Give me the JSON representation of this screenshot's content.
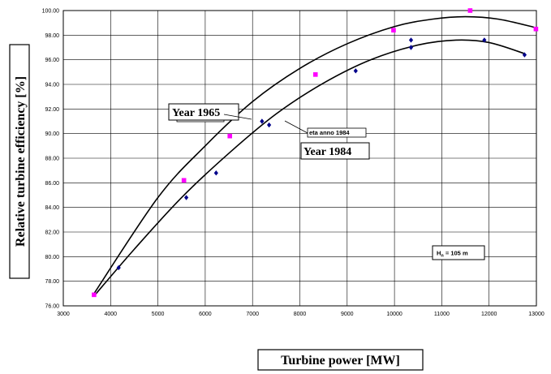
{
  "chart_data": {
    "type": "scatter",
    "xlabel": "Turbine power [MW]",
    "ylabel": "Relative turbine efficiency [%]",
    "xlim": [
      3000,
      13000
    ],
    "ylim": [
      76,
      100
    ],
    "x_ticks": [
      "3000",
      "4000",
      "5000",
      "6000",
      "7000",
      "8000",
      "9000",
      "10000",
      "11000",
      "12000",
      "13000"
    ],
    "y_ticks": [
      "76.00",
      "78.00",
      "80.00",
      "82.00",
      "84.00",
      "86.00",
      "88.00",
      "90.00",
      "92.00",
      "94.00",
      "96.00",
      "98.00",
      "100.00"
    ],
    "grid": true,
    "series": [
      {
        "name": "eta anno 1965",
        "label": "Year 1965",
        "color": "#ff00ff",
        "marker": "square",
        "points": [
          [
            3650,
            76.9
          ],
          [
            5550,
            86.2
          ],
          [
            6520,
            89.8
          ],
          [
            8330,
            94.8
          ],
          [
            9980,
            98.4
          ],
          [
            11600,
            100.0
          ],
          [
            12990,
            98.5
          ]
        ],
        "fit": [
          [
            3650,
            77.0
          ],
          [
            5000,
            84.8
          ],
          [
            6000,
            89.0
          ],
          [
            7000,
            92.6
          ],
          [
            8000,
            95.3
          ],
          [
            9000,
            97.3
          ],
          [
            10000,
            98.7
          ],
          [
            10800,
            99.3
          ],
          [
            11500,
            99.5
          ],
          [
            12200,
            99.3
          ],
          [
            13000,
            98.6
          ]
        ]
      },
      {
        "name": "eta anno 1984",
        "label": "Year 1984",
        "color": "#00008b",
        "marker": "diamond",
        "points": [
          [
            4170,
            79.1
          ],
          [
            5600,
            84.8
          ],
          [
            6230,
            86.8
          ],
          [
            7200,
            91.0
          ],
          [
            7350,
            90.7
          ],
          [
            9180,
            95.1
          ],
          [
            10350,
            97.0
          ],
          [
            10350,
            97.6
          ],
          [
            11900,
            97.6
          ],
          [
            12750,
            96.4
          ]
        ],
        "fit": [
          [
            3650,
            76.8
          ],
          [
            4500,
            80.6
          ],
          [
            5500,
            84.8
          ],
          [
            6500,
            88.4
          ],
          [
            7500,
            91.6
          ],
          [
            8500,
            94.1
          ],
          [
            9500,
            96.0
          ],
          [
            10500,
            97.2
          ],
          [
            11300,
            97.6
          ],
          [
            12000,
            97.4
          ],
          [
            12750,
            96.5
          ]
        ]
      }
    ],
    "annotation": {
      "prefix": "H",
      "subscript": "n",
      "suffix": " = 105 m"
    }
  }
}
